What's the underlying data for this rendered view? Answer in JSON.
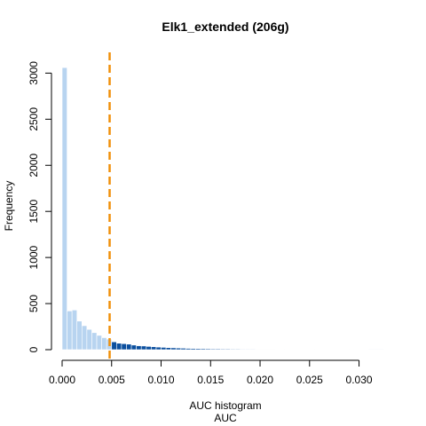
{
  "chart_data": {
    "type": "bar",
    "title": "Elk1_extended (206g)",
    "xlabel_line1": "AUC histogram",
    "xlabel_line2": "AUC",
    "ylabel": "Frequency",
    "xlim": [
      0,
      0.033
    ],
    "ylim": [
      0,
      3100
    ],
    "xticks": [
      {
        "value": 0.0,
        "label": "0.000"
      },
      {
        "value": 0.005,
        "label": "0.005"
      },
      {
        "value": 0.01,
        "label": "0.010"
      },
      {
        "value": 0.015,
        "label": "0.015"
      },
      {
        "value": 0.02,
        "label": "0.020"
      },
      {
        "value": 0.025,
        "label": "0.025"
      },
      {
        "value": 0.03,
        "label": "0.030"
      }
    ],
    "yticks": [
      {
        "value": 0,
        "label": "0"
      },
      {
        "value": 500,
        "label": "500"
      },
      {
        "value": 1000,
        "label": "1000"
      },
      {
        "value": 1500,
        "label": "1500"
      },
      {
        "value": 2000,
        "label": "2000"
      },
      {
        "value": 2500,
        "label": "2500"
      },
      {
        "value": 3000,
        "label": "3000"
      }
    ],
    "bin_width": 0.0005,
    "bin_start": 0.0,
    "counts": [
      3060,
      420,
      430,
      310,
      260,
      220,
      185,
      155,
      130,
      115,
      85,
      70,
      65,
      60,
      50,
      42,
      40,
      35,
      32,
      28,
      25,
      22,
      20,
      18,
      16,
      14,
      13,
      12,
      11,
      10,
      9,
      9,
      8,
      8,
      7,
      7,
      6,
      6,
      6,
      5,
      5,
      5,
      5,
      4,
      4,
      4,
      4,
      3,
      3,
      3,
      3,
      3,
      3,
      3,
      2,
      2,
      2,
      2,
      2,
      2,
      2,
      2,
      1,
      1,
      1
    ],
    "threshold": 0.0048,
    "colors": {
      "below_threshold": "#b8d4f0",
      "above_threshold": "#0b4f9e",
      "bar_border": "#ffffff",
      "threshold_line": "#f0900a",
      "axis": "#000000"
    }
  }
}
